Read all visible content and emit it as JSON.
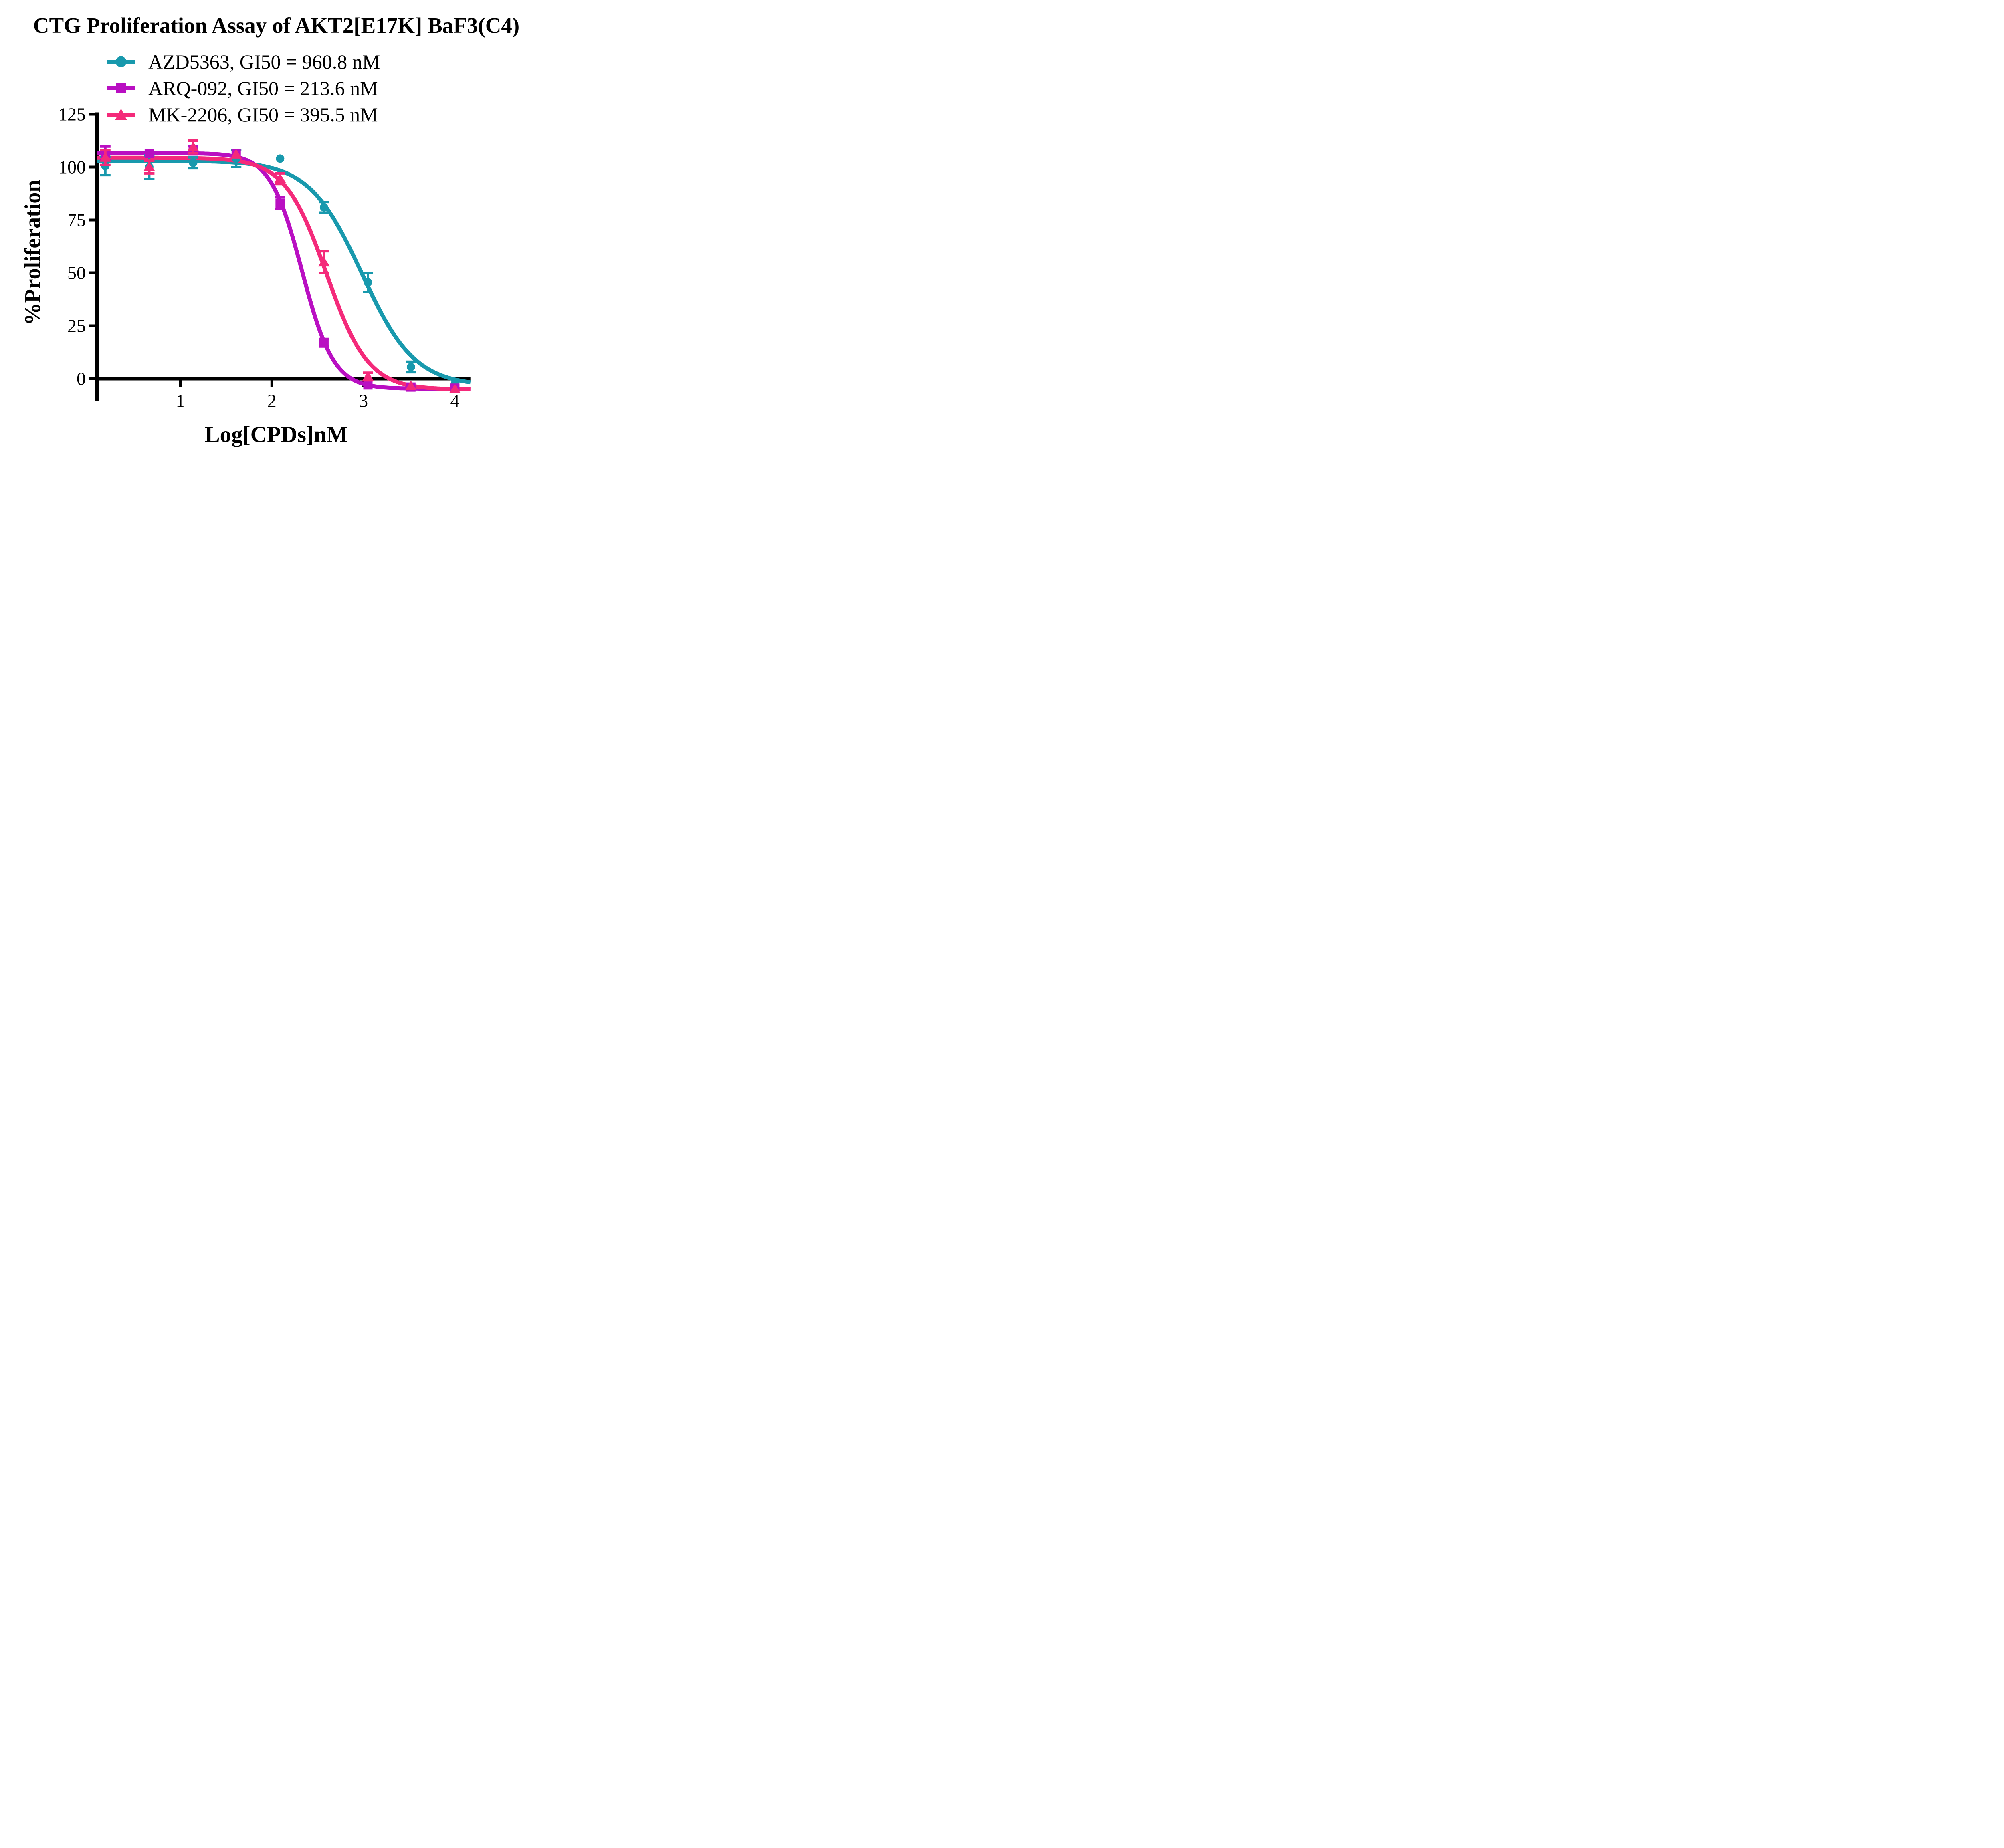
{
  "figure": {
    "background": "#ffffff",
    "text_color": "#000000"
  },
  "chart_data": {
    "type": "scatter",
    "subtype": "dose-response-curves-with-error-bars",
    "title": "CTG Proliferation Assay of AKT2[E17K] BaF3(C4)",
    "xlabel": "Log[CPDs]nM",
    "ylabel": "%Proliferation",
    "xlim": [
      0.09,
      4.17
    ],
    "ylim": [
      -10.5,
      125
    ],
    "x_ticks": [
      1,
      2,
      3,
      4
    ],
    "y_ticks": [
      0,
      25,
      50,
      75,
      100,
      125
    ],
    "grid": false,
    "legend_position": "inside-top-left",
    "x": [
      0.18,
      0.66,
      1.14,
      1.61,
      2.09,
      2.57,
      3.05,
      3.52,
      4.0
    ],
    "series": [
      {
        "name": "AZD5363",
        "legend": "AZD5363, GI50 = 960.8 nM",
        "gi50_nM": 960.8,
        "color": "#1899ad",
        "marker": "circle",
        "values": [
          100.5,
          100,
          102,
          104,
          104,
          81,
          45.5,
          5.5,
          -2.5
        ],
        "errors": [
          4.3,
          5.5,
          2.6,
          4,
          0,
          2.5,
          4.5,
          2.5,
          0
        ],
        "fit": {
          "top": 103.0,
          "bottom": -3.5,
          "log_gi50": 2.983,
          "hill_slope": -1.5
        }
      },
      {
        "name": "ARQ-092",
        "legend": "ARQ-092, GI50 = 213.6 nM",
        "gi50_nM": 213.6,
        "color": "#b90fc2",
        "marker": "square",
        "values": [
          106.5,
          106.5,
          108,
          106.3,
          83,
          17,
          -3,
          -4,
          -4.5
        ],
        "errors": [
          3.2,
          0,
          2,
          0,
          2.8,
          1.8,
          0,
          0,
          0
        ],
        "fit": {
          "top": 106.6,
          "bottom": -4.8,
          "log_gi50": 2.3297,
          "hill_slope": -2.5
        }
      },
      {
        "name": "MK-2206",
        "legend": "MK-2206, GI50 = 395.5 nM",
        "gi50_nM": 395.5,
        "color": "#f42a7a",
        "marker": "triangle",
        "values": [
          104.5,
          100,
          109.5,
          106,
          94.5,
          55,
          1,
          -3.5,
          -5
        ],
        "errors": [
          3.5,
          3,
          3,
          0,
          2.5,
          5.2,
          1.8,
          0,
          0
        ],
        "fit": {
          "top": 104.4,
          "bottom": -5.2,
          "log_gi50": 2.5971,
          "hill_slope": -1.9
        }
      }
    ]
  }
}
